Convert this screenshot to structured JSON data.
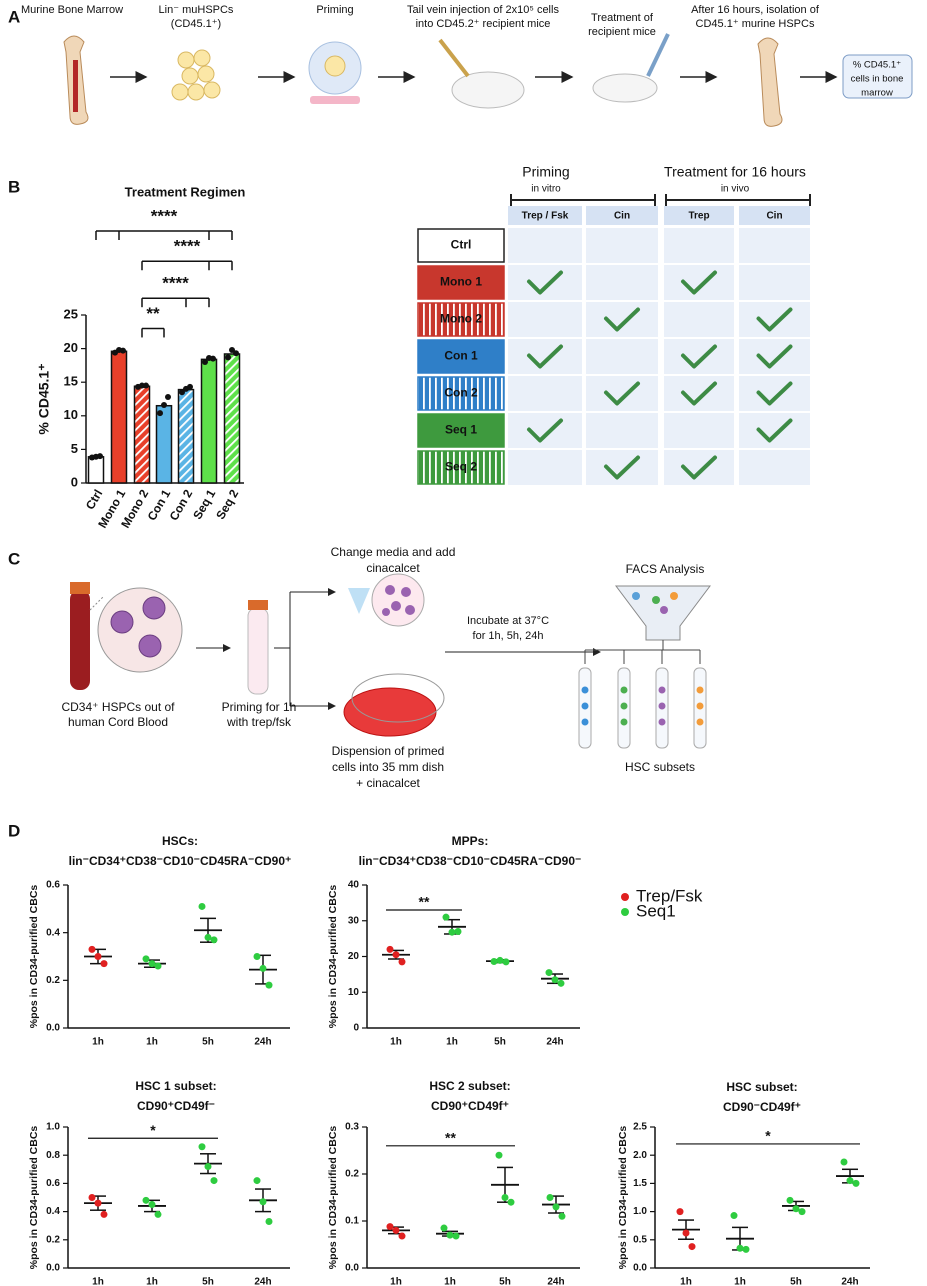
{
  "panel_labels": [
    "A",
    "B",
    "C",
    "D"
  ],
  "panel_a": {
    "steps": [
      [
        "Murine Bone Marrow"
      ],
      [
        "Lin⁻ muHSPCs",
        "(CD45.1⁺)"
      ],
      [
        "Priming"
      ],
      [
        "Tail vein injection of 2x10⁵ cells",
        "into CD45.2⁺ recipient mice"
      ],
      [
        "Treatment of",
        "recipient mice"
      ],
      [
        "After 16 hours, isolation of",
        "CD45.1⁺ murine HSPCs"
      ],
      [
        "% CD45.1⁺",
        "cells in bone",
        "marrow"
      ]
    ]
  },
  "panel_b_table": {
    "groups": [
      {
        "title": "Priming",
        "subtitle": "in vitro"
      },
      {
        "title": "Treatment for 16 hours",
        "subtitle": "in vivo"
      }
    ],
    "columns": [
      "Trep / Fsk",
      "Cin",
      "Trep",
      "Cin"
    ],
    "rows": [
      {
        "label": "Ctrl",
        "color": "#ffffff",
        "hatched": false,
        "checks": [
          false,
          false,
          false,
          false
        ]
      },
      {
        "label": "Mono 1",
        "color": "#c8372d",
        "hatched": false,
        "checks": [
          true,
          false,
          true,
          false
        ]
      },
      {
        "label": "Mono 2",
        "color": "#c8372d",
        "hatched": true,
        "checks": [
          false,
          true,
          false,
          true
        ]
      },
      {
        "label": "Con 1",
        "color": "#2f7fc8",
        "hatched": false,
        "checks": [
          true,
          false,
          true,
          true
        ]
      },
      {
        "label": "Con 2",
        "color": "#2f7fc8",
        "hatched": true,
        "checks": [
          false,
          true,
          true,
          true
        ]
      },
      {
        "label": "Seq 1",
        "color": "#3e9a3e",
        "hatched": false,
        "checks": [
          true,
          false,
          false,
          true
        ]
      },
      {
        "label": "Seq 2",
        "color": "#3e9a3e",
        "hatched": true,
        "checks": [
          false,
          true,
          true,
          false
        ]
      }
    ]
  },
  "panel_c": {
    "source": [
      "CD34⁺ HSPCs out of",
      "human Cord Blood"
    ],
    "priming": [
      "Priming for 1h",
      "with trep/fsk"
    ],
    "media": [
      "Change media and add",
      "cinacalcet"
    ],
    "dish": [
      "Dispension of primed",
      "cells into 35 mm dish",
      "+ cinacalcet"
    ],
    "incubate": [
      "Incubate at 37°C",
      "for 1h, 5h, 24h"
    ],
    "facs": "FACS Analysis",
    "subsets": "HSC subsets"
  },
  "legend": [
    {
      "name": "Trep/Fsk",
      "color": "#e02020"
    },
    {
      "name": "Seq1",
      "color": "#2ecc40"
    }
  ],
  "chart_data": [
    {
      "type": "bar",
      "title": "Treatment Regimen",
      "ylabel": "% CD45.1⁺",
      "categories": [
        "Ctrl",
        "Mono 1",
        "Mono 2",
        "Con 1",
        "Con 2",
        "Seq 1",
        "Seq 2"
      ],
      "values": [
        3.9,
        19.6,
        14.4,
        11.5,
        13.9,
        18.4,
        19.2
      ],
      "points": [
        [
          3.8,
          3.9,
          4.0
        ],
        [
          19.4,
          19.8,
          19.7
        ],
        [
          14.3,
          14.5,
          14.5
        ],
        [
          10.4,
          11.6,
          12.8
        ],
        [
          13.5,
          14.0,
          14.3
        ],
        [
          18.0,
          18.6,
          18.5
        ],
        [
          18.7,
          19.8,
          19.3
        ]
      ],
      "colors": [
        "#ffffff",
        "#e8402a",
        "#e8402a",
        "#5ab4e5",
        "#5ab4e5",
        "#5ee04a",
        "#5ee04a"
      ],
      "hatched": [
        false,
        false,
        true,
        false,
        true,
        false,
        true
      ],
      "ylim": [
        0,
        25
      ],
      "yticks": [
        0,
        5,
        10,
        15,
        20,
        25
      ],
      "annotations": [
        {
          "text": "****",
          "y": 37.5,
          "span": [
            0,
            1,
            5,
            6
          ]
        },
        {
          "text": "****",
          "y": 33,
          "span": [
            2,
            5,
            6
          ]
        },
        {
          "text": "****",
          "y": 27.5,
          "span": [
            2,
            4,
            5
          ]
        },
        {
          "text": "**",
          "y": 23,
          "span": [
            2,
            3
          ]
        }
      ]
    },
    {
      "type": "dot",
      "title": [
        "HSCs:",
        "lin⁻CD34⁺CD38⁻CD10⁻CD45RA⁻CD90⁺"
      ],
      "ylabel": "%pos in CD34-purified CBCs",
      "categories": [
        "1h",
        "1h",
        "5h",
        "24h"
      ],
      "colors": [
        "#e02020",
        "#2ecc40",
        "#2ecc40",
        "#2ecc40"
      ],
      "values": [
        0.3,
        0.27,
        0.41,
        0.245
      ],
      "errors": [
        0.03,
        0.015,
        0.05,
        0.06
      ],
      "points": [
        [
          0.33,
          0.3,
          0.27
        ],
        [
          0.29,
          0.27,
          0.26
        ],
        [
          0.51,
          0.38,
          0.37
        ],
        [
          0.3,
          0.25,
          0.18
        ]
      ],
      "ylim": [
        0,
        0.6
      ],
      "yticks": [
        {
          "value": 0,
          "label": "0.0"
        },
        0.2,
        0.4,
        0.6
      ],
      "annotations": []
    },
    {
      "type": "dot",
      "title": [
        "MPPs:",
        "lin⁻CD34⁺CD38⁻CD10⁻CD45RA⁻CD90⁻"
      ],
      "ylabel": "%pos in CD34-purified CBCs",
      "categories": [
        "1h",
        "1h",
        "5h",
        "24h"
      ],
      "colors": [
        "#e02020",
        "#2ecc40",
        "#2ecc40",
        "#2ecc40"
      ],
      "values": [
        20.5,
        28.3,
        18.7,
        13.8
      ],
      "errors": [
        1.2,
        2.0,
        0.4,
        1.3
      ],
      "points": [
        [
          22,
          20.5,
          18.5
        ],
        [
          31,
          26.8,
          27
        ],
        [
          18.6,
          18.9,
          18.5
        ],
        [
          15.5,
          13.5,
          12.5
        ]
      ],
      "ylim": [
        0,
        40
      ],
      "yticks": [
        0,
        10,
        20,
        30,
        40
      ],
      "annotations": [
        {
          "text": "**",
          "y": 33,
          "span": [
            0,
            1
          ]
        }
      ]
    },
    {
      "type": "dot",
      "title": [
        "HSC 1 subset:",
        "CD90⁺CD49f⁻"
      ],
      "ylabel": "%pos in CD34-purified CBCs",
      "categories": [
        "1h",
        "1h",
        "5h",
        "24h"
      ],
      "colors": [
        "#e02020",
        "#2ecc40",
        "#2ecc40",
        "#2ecc40"
      ],
      "values": [
        0.46,
        0.44,
        0.74,
        0.48
      ],
      "errors": [
        0.05,
        0.04,
        0.07,
        0.08
      ],
      "points": [
        [
          0.5,
          0.46,
          0.38
        ],
        [
          0.48,
          0.45,
          0.38
        ],
        [
          0.86,
          0.72,
          0.62
        ],
        [
          0.62,
          0.47,
          0.33
        ]
      ],
      "ylim": [
        0,
        1.0
      ],
      "yticks": [
        {
          "value": 0,
          "label": "0.0"
        },
        0.2,
        0.4,
        0.6,
        0.8,
        {
          "value": 1,
          "label": "1.0"
        }
      ],
      "annotations": [
        {
          "text": "*",
          "y": 0.92,
          "span": [
            0,
            2
          ]
        }
      ]
    },
    {
      "type": "dot",
      "title": [
        "HSC 2 subset:",
        "CD90⁺CD49f⁺"
      ],
      "ylabel": "%pos in CD34-purified CBCs",
      "categories": [
        "1h",
        "1h",
        "5h",
        "24h"
      ],
      "colors": [
        "#e02020",
        "#2ecc40",
        "#2ecc40",
        "#2ecc40"
      ],
      "values": [
        0.08,
        0.073,
        0.177,
        0.135
      ],
      "errors": [
        0.007,
        0.005,
        0.037,
        0.018
      ],
      "points": [
        [
          0.088,
          0.08,
          0.068
        ],
        [
          0.085,
          0.07,
          0.068
        ],
        [
          0.24,
          0.15,
          0.14
        ],
        [
          0.15,
          0.13,
          0.11
        ]
      ],
      "ylim": [
        0,
        0.3
      ],
      "yticks": [
        {
          "value": 0,
          "label": "0.0"
        },
        0.1,
        0.2,
        0.3
      ],
      "annotations": [
        {
          "text": "**",
          "y": 0.26,
          "span": [
            0,
            2
          ]
        }
      ]
    },
    {
      "type": "dot",
      "title": [
        "HSC subset:",
        "CD90⁻CD49f⁺"
      ],
      "ylabel": "%pos in CD34-purified CBCs",
      "categories": [
        "1h",
        "1h",
        "5h",
        "24h"
      ],
      "colors": [
        "#e02020",
        "#2ecc40",
        "#2ecc40",
        "#2ecc40"
      ],
      "values": [
        0.68,
        0.52,
        1.1,
        1.63
      ],
      "errors": [
        0.17,
        0.2,
        0.08,
        0.12
      ],
      "points": [
        [
          1.0,
          0.62,
          0.38
        ],
        [
          0.93,
          0.35,
          0.33
        ],
        [
          1.2,
          1.05,
          1.0
        ],
        [
          1.88,
          1.55,
          1.5
        ]
      ],
      "ylim": [
        0,
        2.5
      ],
      "yticks": [
        {
          "value": 0,
          "label": "0.0"
        },
        0.5,
        {
          "value": 1,
          "label": "1.0"
        },
        1.5,
        {
          "value": 2,
          "label": "2.0"
        },
        2.5
      ],
      "annotations": [
        {
          "text": "*",
          "y": 2.2,
          "span": [
            0,
            3
          ]
        }
      ]
    }
  ]
}
